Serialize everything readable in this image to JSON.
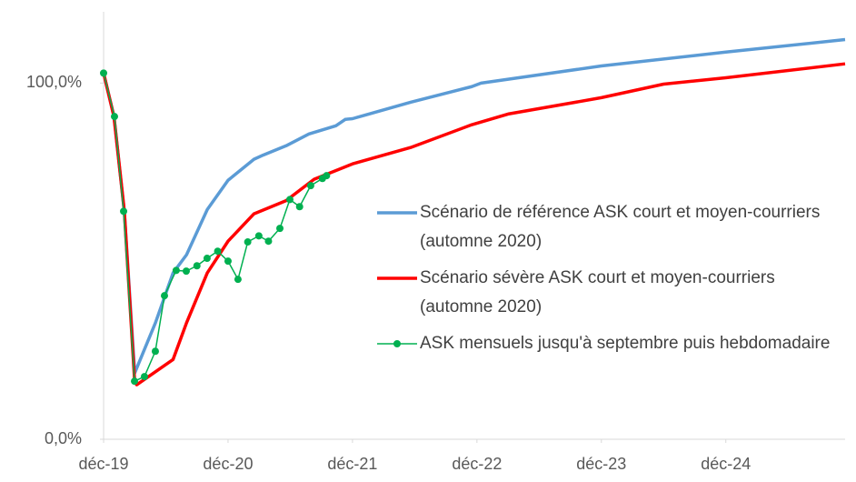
{
  "chart_data": {
    "type": "line",
    "xlim": [
      0,
      71.5
    ],
    "xticks": [
      {
        "value": 0,
        "label": "déc-19"
      },
      {
        "value": 12,
        "label": "déc-20"
      },
      {
        "value": 24,
        "label": "déc-21"
      },
      {
        "value": 36,
        "label": "déc-22"
      },
      {
        "value": 48,
        "label": "déc-23"
      },
      {
        "value": 60,
        "label": "déc-24"
      }
    ],
    "ylim": [
      0,
      120
    ],
    "yticks": [
      {
        "value": 0,
        "label": "0,0%"
      },
      {
        "value": 100,
        "label": "100,0%"
      }
    ],
    "series": [
      {
        "name": "Scénario de référence ASK court et moyen-courriers (automne 2020)",
        "color": "#5b9bd5",
        "markers": false,
        "x": [
          0,
          1,
          2,
          3,
          5,
          6.7,
          8,
          10,
          12,
          14.5,
          15.4,
          17.6,
          19.8,
          22.4,
          23.3,
          24,
          29.6,
          35.5,
          36.4,
          48,
          60,
          71.5
        ],
        "values": [
          102.8,
          90.6,
          64,
          18.6,
          32.7,
          46.7,
          51.8,
          64.5,
          72.7,
          78.6,
          79.8,
          82.4,
          85.7,
          88,
          89.8,
          90,
          94.6,
          99,
          100,
          104.8,
          108.7,
          112.2
        ]
      },
      {
        "name": "Scénario sévère ASK court et moyen-courriers (automne 2020)",
        "color": "#ff0000",
        "markers": false,
        "x": [
          0,
          1,
          2,
          3,
          3.2,
          6.7,
          8,
          10,
          12,
          14.5,
          17.6,
          20.3,
          24,
          29.6,
          35.5,
          39,
          48,
          54,
          60,
          71.5
        ],
        "values": [
          102.8,
          90.6,
          64,
          16,
          15.3,
          22.4,
          32.7,
          46.7,
          55.6,
          63.3,
          67,
          73,
          77.3,
          81.9,
          88.3,
          91.3,
          95.9,
          99.7,
          101.5,
          105.4
        ]
      },
      {
        "name": "ASK mensuels jusqu'à septembre puis hebdomadaire",
        "color": "#00b050",
        "markers": true,
        "x": [
          0,
          1.05,
          1.93,
          2.98,
          3.94,
          4.99,
          5.87,
          7,
          7.97,
          9,
          9.98,
          11,
          12,
          12.96,
          13.9,
          14.97,
          15.9,
          17,
          17.96,
          18.9,
          19.97,
          21.1,
          21.5
        ],
        "values": [
          102.8,
          90.6,
          64,
          16.3,
          17.6,
          24.7,
          40.3,
          47.4,
          47.2,
          48.7,
          50.8,
          52.8,
          50,
          44.9,
          55.4,
          57.1,
          55.6,
          59.2,
          67.3,
          65.3,
          71.2,
          73.2,
          74
        ]
      }
    ]
  }
}
